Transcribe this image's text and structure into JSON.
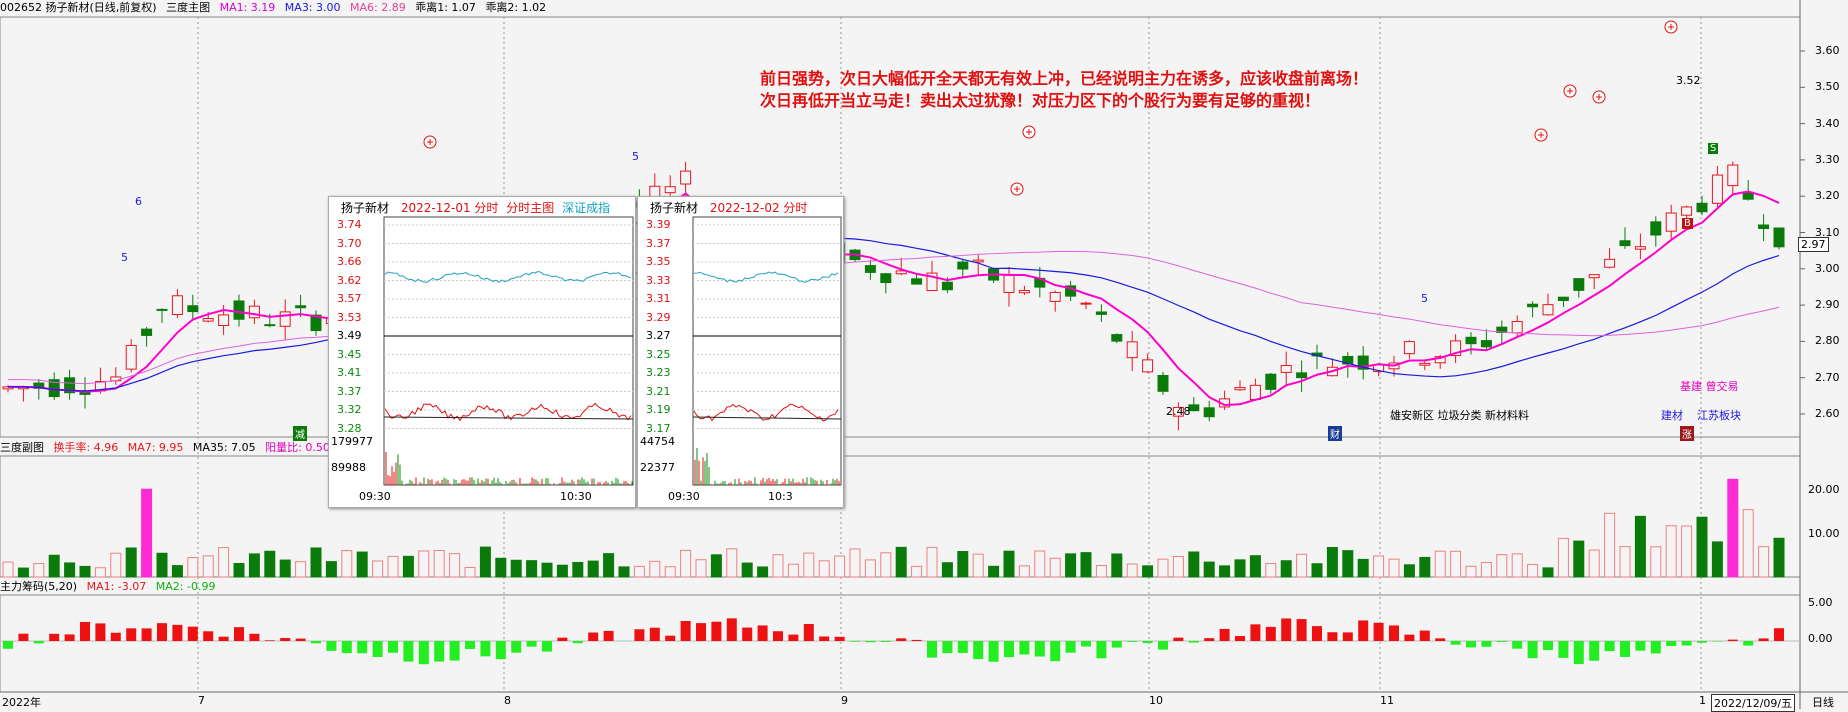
{
  "header": {
    "stock": "002652 扬子新材(日线,前复权)",
    "panel_name": "三度主图",
    "ma1": "MA1: 3.19",
    "ma3": "MA3: 3.00",
    "ma6": "MA6: 2.89",
    "dev1": "乖离1: 1.07",
    "dev2": "乖离2: 1.02"
  },
  "sub1": {
    "name": "三度副图",
    "turnover": "换手率: 4.96",
    "ma7": "MA7: 9.95",
    "ma35": "MA35: 7.05",
    "yang": "阳量比: 0.50",
    "ticks": [
      "20.00",
      "10.00"
    ]
  },
  "sub2": {
    "name": "主力筹码(5,20)",
    "ma1": "MA1: -3.07",
    "ma2": "MA2: -0.99",
    "ticks": [
      "5.00",
      "0.00"
    ]
  },
  "price_axis": [
    "3.60",
    "3.50",
    "3.40",
    "3.30",
    "3.20",
    "3.10",
    "3.00",
    "2.90",
    "2.80",
    "2.70",
    "2.60"
  ],
  "last_price_tag": "2.97",
  "annotation": {
    "line1": "前日强势，次日大幅低开全天都无有效上冲，已经说明主力在诱多，应该收盘前离场！",
    "line2": "次日再低开当立马走！卖出太过犹豫！对压力区下的个股行为要有足够的重视！"
  },
  "markers": {
    "low": "2.48",
    "high": "3.52",
    "count6": "6",
    "count5a": "5",
    "count5b": "5",
    "count5c": "5"
  },
  "tags": {
    "tag1": "雄安新区 垃圾分类 新材料料",
    "tag2": "基建 曾交易",
    "tag3": "建材",
    "tag4": "江苏板块",
    "badge_s": "S",
    "badge_b": "B",
    "badge_cai": "财",
    "badge_zhang": "涨",
    "badge_jian": "减"
  },
  "x_axis": {
    "year": "2022年",
    "months": [
      "7",
      "8",
      "9",
      "10",
      "11",
      "1"
    ],
    "date_box": "2022/12/09/五",
    "period": "日线"
  },
  "popup1": {
    "name": "扬子新材",
    "date": "2022-12-01 分时",
    "sub": "分时主图",
    "index": "深证成指",
    "prices": [
      "3.74",
      "3.70",
      "3.66",
      "3.62",
      "3.57",
      "3.53",
      "3.49",
      "3.45",
      "3.41",
      "3.37",
      "3.32",
      "3.28"
    ],
    "vols": [
      "179977",
      "89988"
    ],
    "times": [
      "09:30",
      "10:30"
    ]
  },
  "popup2": {
    "name": "扬子新材",
    "date": "2022-12-02 分时",
    "prices": [
      "3.39",
      "3.37",
      "3.35",
      "3.33",
      "3.31",
      "3.29",
      "3.27",
      "3.25",
      "3.23",
      "3.21",
      "3.19",
      "3.17"
    ],
    "vols": [
      "44754",
      "22377"
    ],
    "times": [
      "09:30",
      "10:3"
    ]
  },
  "colors": {
    "up": "#e8161e",
    "down": "#0a7a0a",
    "magenta": "#ff00cc",
    "blue": "#1a1ae0",
    "pink": "#ff2bd6"
  }
}
